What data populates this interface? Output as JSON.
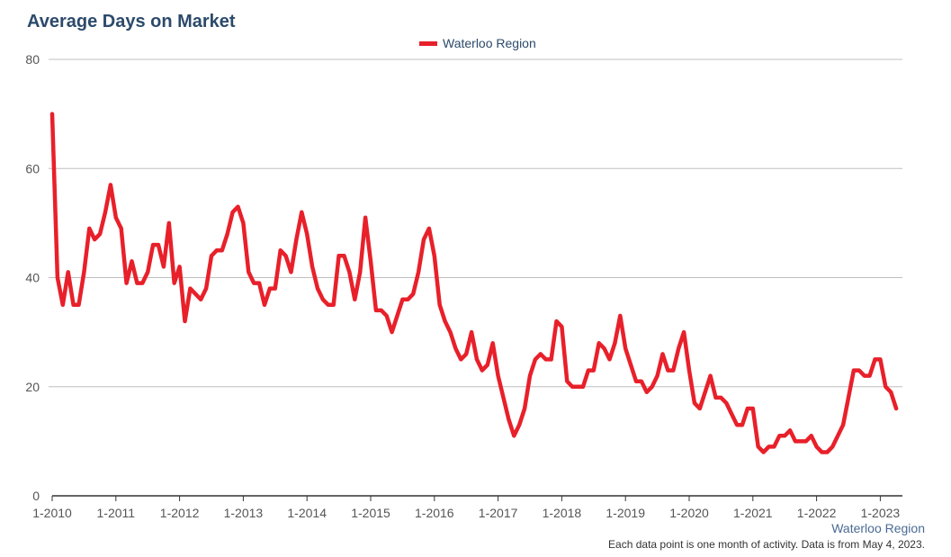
{
  "title": "Average Days on Market",
  "legend": {
    "label": "Waterloo Region",
    "color": "#e8202a"
  },
  "source_label": "Waterloo Region",
  "footnote": "Each data point is one month of activity. Data is from May 4, 2023.",
  "chart_data": {
    "type": "line",
    "ylim": [
      0,
      80
    ],
    "yticks": [
      0,
      20,
      40,
      60,
      80
    ],
    "xticks": [
      "1-2010",
      "1-2011",
      "1-2012",
      "1-2013",
      "1-2014",
      "1-2015",
      "1-2016",
      "1-2017",
      "1-2018",
      "1-2019",
      "1-2020",
      "1-2021",
      "1-2022",
      "1-2023"
    ],
    "x_start": "2010-01",
    "x_end": "2023-04",
    "grid": true,
    "series": [
      {
        "name": "Waterloo Region",
        "color": "#e8202a",
        "values": [
          70,
          40,
          35,
          41,
          35,
          35,
          41,
          49,
          47,
          48,
          52,
          57,
          51,
          49,
          39,
          43,
          39,
          39,
          41,
          46,
          46,
          42,
          50,
          39,
          42,
          32,
          38,
          37,
          36,
          38,
          44,
          45,
          45,
          48,
          52,
          53,
          50,
          41,
          39,
          39,
          35,
          38,
          38,
          45,
          44,
          41,
          47,
          52,
          48,
          42,
          38,
          36,
          35,
          35,
          44,
          44,
          41,
          36,
          41,
          51,
          43,
          34,
          34,
          33,
          30,
          33,
          36,
          36,
          37,
          41,
          47,
          49,
          44,
          35,
          32,
          30,
          27,
          25,
          26,
          30,
          25,
          23,
          24,
          28,
          22,
          18,
          14,
          11,
          13,
          16,
          22,
          25,
          26,
          25,
          25,
          32,
          31,
          21,
          20,
          20,
          20,
          23,
          23,
          28,
          27,
          25,
          28,
          33,
          27,
          24,
          21,
          21,
          19,
          20,
          22,
          26,
          23,
          23,
          27,
          30,
          23,
          17,
          16,
          19,
          22,
          18,
          18,
          17,
          15,
          13,
          13,
          16,
          16,
          9,
          8,
          9,
          9,
          11,
          11,
          12,
          10,
          10,
          10,
          11,
          9,
          8,
          8,
          9,
          11,
          13,
          18,
          23,
          23,
          22,
          22,
          25,
          25,
          20,
          19,
          16
        ]
      }
    ]
  }
}
